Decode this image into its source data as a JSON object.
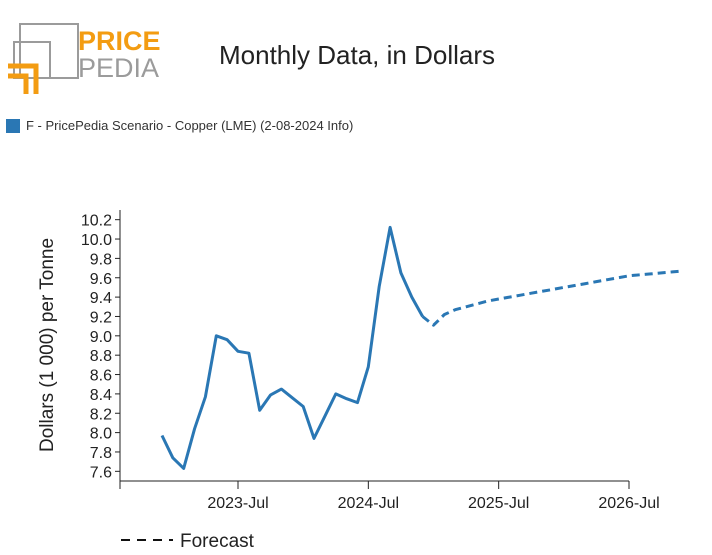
{
  "logo": {
    "word_top": "PRICE",
    "word_bottom": "PEDIA",
    "accent": "#f39c12",
    "gray": "#9b9b9b"
  },
  "header": {
    "title": "Monthly Data, in Dollars"
  },
  "legend": {
    "label": "F - PricePedia Scenario - Copper (LME) (2-08-2024 Info)",
    "color": "#2a77b4"
  },
  "forecast_label": "Forecast",
  "chart_data": {
    "type": "line",
    "title": "Monthly Data, in Dollars",
    "ylabel": "Dollars (1 000) per Tonne",
    "xlabel": "",
    "ylim": [
      7.5,
      10.3
    ],
    "yticks": [
      7.6,
      7.8,
      8.0,
      8.2,
      8.4,
      8.6,
      8.8,
      9.0,
      9.2,
      9.4,
      9.6,
      9.8,
      10.0,
      10.2
    ],
    "xticks": [
      "2023-Jul",
      "2024-Jul",
      "2025-Jul",
      "2026-Jul"
    ],
    "series": [
      {
        "name": "F - PricePedia Scenario - Copper (LME) (2-08-2024 Info)",
        "style": "solid",
        "color": "#2a77b4",
        "points": [
          [
            "2022-12",
            7.97
          ],
          [
            "2023-01",
            7.74
          ],
          [
            "2023-02",
            7.63
          ],
          [
            "2023-03",
            8.04
          ],
          [
            "2023-04",
            8.37
          ],
          [
            "2023-05",
            9.0
          ],
          [
            "2023-06",
            8.96
          ],
          [
            "2023-07",
            8.84
          ],
          [
            "2023-08",
            8.82
          ],
          [
            "2023-09",
            8.23
          ],
          [
            "2023-10",
            8.39
          ],
          [
            "2023-11",
            8.45
          ],
          [
            "2023-12",
            8.36
          ],
          [
            "2024-01",
            8.27
          ],
          [
            "2024-02",
            7.94
          ],
          [
            "2024-03",
            8.17
          ],
          [
            "2024-04",
            8.4
          ],
          [
            "2024-05",
            8.35
          ],
          [
            "2024-06",
            8.31
          ],
          [
            "2024-07",
            8.68
          ],
          [
            "2024-08",
            9.51
          ],
          [
            "2024-09",
            10.12
          ],
          [
            "2024-10",
            9.65
          ],
          [
            "2024-11",
            9.4
          ],
          [
            "2024-12",
            9.2
          ]
        ]
      },
      {
        "name": "Forecast",
        "style": "dashed",
        "color": "#2a77b4",
        "points": [
          [
            "2024-12",
            9.2
          ],
          [
            "2025-01",
            9.11
          ],
          [
            "2025-02",
            9.22
          ],
          [
            "2025-03",
            9.27
          ],
          [
            "2025-04",
            9.3
          ],
          [
            "2025-05",
            9.33
          ],
          [
            "2025-06",
            9.36
          ],
          [
            "2025-07",
            9.38
          ],
          [
            "2025-08",
            9.4
          ],
          [
            "2025-09",
            9.42
          ],
          [
            "2025-10",
            9.44
          ],
          [
            "2025-11",
            9.46
          ],
          [
            "2025-12",
            9.48
          ],
          [
            "2026-01",
            9.5
          ],
          [
            "2026-02",
            9.52
          ],
          [
            "2026-03",
            9.54
          ],
          [
            "2026-04",
            9.56
          ],
          [
            "2026-05",
            9.58
          ],
          [
            "2026-06",
            9.6
          ],
          [
            "2026-07",
            9.62
          ],
          [
            "2026-08",
            9.63
          ],
          [
            "2026-09",
            9.64
          ],
          [
            "2026-10",
            9.65
          ],
          [
            "2026-11",
            9.66
          ],
          [
            "2026-12",
            9.67
          ]
        ]
      }
    ]
  }
}
